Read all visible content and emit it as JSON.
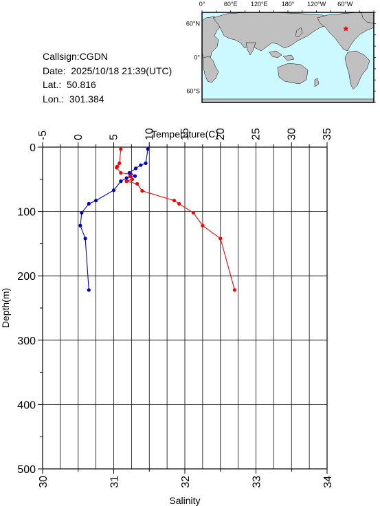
{
  "info": {
    "callsign": "Callsign:CGDN",
    "date": "Date:  2025/10/18 21:39(UTC)",
    "lat": "Lat.:  50.816",
    "lon": "Lon.:  301.384"
  },
  "map": {
    "lon_labels": [
      "0°",
      "60°E",
      "120°E",
      "180°",
      "120°W",
      "60°W"
    ],
    "lat_labels": [
      "60°N",
      "0°",
      "60°S"
    ],
    "colors": {
      "ocean": "#ccf8ff",
      "land": "#c0c0c0",
      "marker": "#ff0000"
    },
    "marker": {
      "lat": 50.816,
      "lon": 301.384
    }
  },
  "chart_data": {
    "type": "line",
    "title": "",
    "y_axis": {
      "label": "Depth(m)",
      "range": [
        500,
        0
      ],
      "ticks": [
        0,
        100,
        200,
        300,
        400,
        500
      ],
      "inverted": true
    },
    "temperature_axis": {
      "label": "Temperature(C)",
      "position": "top",
      "range": [
        -5,
        35
      ],
      "ticks": [
        -5,
        0,
        5,
        10,
        15,
        20,
        25,
        30,
        35
      ]
    },
    "salinity_axis": {
      "label": "Salinity",
      "position": "bottom",
      "range": [
        30,
        34
      ],
      "ticks": [
        30,
        31,
        32,
        33,
        34
      ]
    },
    "grid": true,
    "series": [
      {
        "variable": "temperature",
        "axis": "top",
        "color": "#ff0000",
        "points": [
          {
            "x": 6.0,
            "depth": 3
          },
          {
            "x": 5.8,
            "depth": 25
          },
          {
            "x": 5.5,
            "depth": 30
          },
          {
            "x": 5.4,
            "depth": 32
          },
          {
            "x": 6.0,
            "depth": 40
          },
          {
            "x": 7.4,
            "depth": 42
          },
          {
            "x": 7.3,
            "depth": 45
          },
          {
            "x": 7.6,
            "depth": 50
          },
          {
            "x": 6.8,
            "depth": 53
          },
          {
            "x": 8.3,
            "depth": 57
          },
          {
            "x": 9.0,
            "depth": 68
          },
          {
            "x": 13.5,
            "depth": 83
          },
          {
            "x": 14.2,
            "depth": 88
          },
          {
            "x": 16.2,
            "depth": 102
          },
          {
            "x": 17.5,
            "depth": 122
          },
          {
            "x": 20.0,
            "depth": 142
          },
          {
            "x": 22.0,
            "depth": 222
          }
        ]
      },
      {
        "variable": "salinity",
        "axis": "bottom",
        "color": "#0000cc",
        "points": [
          {
            "x": 31.48,
            "depth": 3
          },
          {
            "x": 31.45,
            "depth": 25
          },
          {
            "x": 31.38,
            "depth": 28
          },
          {
            "x": 31.31,
            "depth": 33
          },
          {
            "x": 31.22,
            "depth": 40
          },
          {
            "x": 31.3,
            "depth": 45
          },
          {
            "x": 31.18,
            "depth": 48
          },
          {
            "x": 31.1,
            "depth": 53
          },
          {
            "x": 31.0,
            "depth": 67
          },
          {
            "x": 30.75,
            "depth": 83
          },
          {
            "x": 30.65,
            "depth": 88
          },
          {
            "x": 30.55,
            "depth": 102
          },
          {
            "x": 30.53,
            "depth": 122
          },
          {
            "x": 30.6,
            "depth": 142
          },
          {
            "x": 30.65,
            "depth": 222
          }
        ]
      }
    ]
  }
}
